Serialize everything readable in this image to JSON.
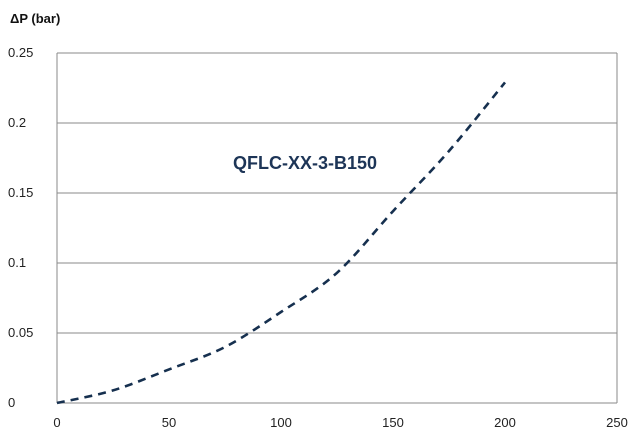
{
  "chart_data": {
    "type": "line",
    "ylabel": "ΔP (bar)",
    "xlabel": "",
    "xlim": [
      0,
      250
    ],
    "ylim": [
      0,
      0.25
    ],
    "x_ticks": [
      "0",
      "50",
      "100",
      "150",
      "200",
      "250"
    ],
    "y_ticks": [
      "0",
      "0.05",
      "0.1",
      "0.15",
      "0.2",
      "0.25"
    ],
    "grid": "horizontal",
    "annotation": "QFLC-XX-3-B150",
    "series": [
      {
        "color": "#16304f",
        "dash": "dashed",
        "x": [
          0,
          25,
          50,
          75,
          100,
          125,
          150,
          175,
          200
        ],
        "y": [
          0,
          0.009,
          0.024,
          0.04,
          0.065,
          0.093,
          0.137,
          0.18,
          0.229
        ]
      }
    ]
  },
  "colors": {
    "line": "#16304f",
    "annotation": "#1d3557",
    "grid": "#8a8a8a"
  }
}
